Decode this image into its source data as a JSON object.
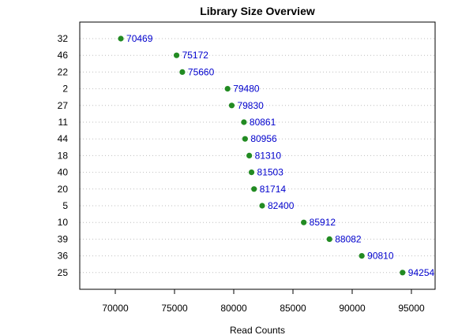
{
  "chart_data": {
    "type": "scatter",
    "title": "Library Size Overview",
    "xlabel": "Read Counts",
    "ylabel": "",
    "xlim": [
      67000,
      97000
    ],
    "xticks": [
      70000,
      75000,
      80000,
      85000,
      90000,
      95000
    ],
    "grid": "horizontal dotted",
    "categories": [
      "32",
      "46",
      "22",
      "2",
      "27",
      "11",
      "44",
      "18",
      "40",
      "20",
      "5",
      "10",
      "39",
      "36",
      "25"
    ],
    "values": [
      70469,
      75172,
      75660,
      79480,
      79830,
      80861,
      80956,
      81310,
      81503,
      81714,
      82400,
      85912,
      88082,
      90810,
      94254
    ],
    "data_labels": [
      "70469",
      "75172",
      "75660",
      "79480",
      "79830",
      "80861",
      "80956",
      "81310",
      "81503",
      "81714",
      "82400",
      "85912",
      "88082",
      "90810",
      "94254"
    ]
  },
  "colors": {
    "point": "#228B22",
    "data_label": "#0000CD",
    "grid": "#BEBEBE",
    "axis": "#000000"
  }
}
